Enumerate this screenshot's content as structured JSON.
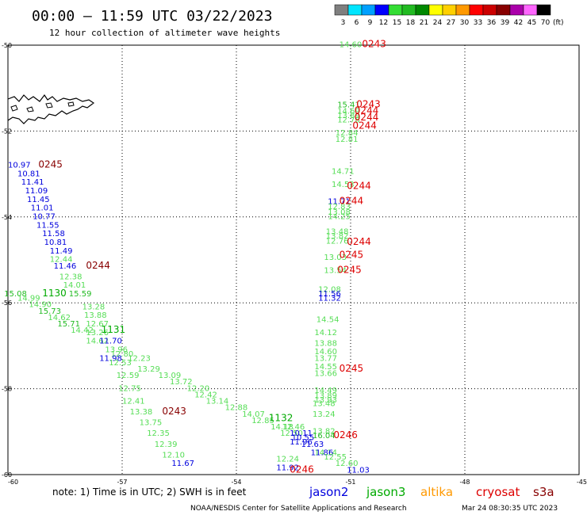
{
  "header": {
    "title": "00:00 — 11:59 UTC 03/22/2023",
    "subtitle": "12 hour collection of altimeter wave heights"
  },
  "legend": {
    "labels": [
      "3",
      "6",
      "9",
      "12",
      "15",
      "18",
      "21",
      "24",
      "27",
      "30",
      "33",
      "36",
      "39",
      "42",
      "45",
      "70",
      "(ft)"
    ],
    "colors": [
      "#7f7f7f",
      "#00e5ff",
      "#00a0ff",
      "#0000ff",
      "#33dd33",
      "#22bb22",
      "#008800",
      "#ffff00",
      "#ffd000",
      "#ff9900",
      "#ff0000",
      "#cc0000",
      "#880000",
      "#aa00aa",
      "#ff66ff",
      "#000000"
    ]
  },
  "footer": {
    "note": "note: 1) Time is in UTC; 2) SWH is in feet",
    "satellites": [
      {
        "name": "jason2",
        "color": "#0000dd"
      },
      {
        "name": "jason3",
        "color": "#00aa00"
      },
      {
        "name": "altika",
        "color": "#ff9900"
      },
      {
        "name": "cryosat",
        "color": "#dd0000"
      },
      {
        "name": "s3a",
        "color": "#880000"
      }
    ],
    "credit": "NOAA/NESDIS Center for Satellite Applications and Research",
    "timestamp": "Mar 24 08:30:35 UTC 2023"
  },
  "chart_data": {
    "type": "scatter",
    "xlim": [
      -60,
      -45
    ],
    "ylim": [
      -60,
      -50
    ],
    "x_ticks": [
      "-60",
      "-57",
      "-54",
      "-51",
      "-48",
      "-45"
    ],
    "y_ticks": [
      "-50",
      "-52",
      "-54",
      "-56",
      "-58",
      "-60"
    ],
    "grid": true,
    "points": [
      {
        "x": -51.3,
        "y": -50.05,
        "v": "14.60",
        "c": "#55dd55"
      },
      {
        "x": -51.35,
        "y": -51.45,
        "v": "15.41",
        "c": "#22bb22"
      },
      {
        "x": -51.35,
        "y": -51.6,
        "v": "14.69",
        "c": "#55dd55"
      },
      {
        "x": -51.35,
        "y": -51.7,
        "v": "13.89",
        "c": "#55dd55"
      },
      {
        "x": -51.35,
        "y": -51.8,
        "v": "12.78",
        "c": "#55dd55"
      },
      {
        "x": -51.4,
        "y": -52.1,
        "v": "12.84",
        "c": "#55dd55"
      },
      {
        "x": -51.4,
        "y": -52.25,
        "v": "12.81",
        "c": "#55dd55"
      },
      {
        "x": -51.5,
        "y": -53.0,
        "v": "14.71",
        "c": "#55dd55"
      },
      {
        "x": -51.5,
        "y": -53.3,
        "v": "14.53",
        "c": "#55dd55"
      },
      {
        "x": -51.6,
        "y": -53.7,
        "v": "11.71",
        "c": "#0000dd"
      },
      {
        "x": -51.6,
        "y": -53.82,
        "v": "12.83",
        "c": "#55dd55"
      },
      {
        "x": -51.6,
        "y": -53.95,
        "v": "13.08",
        "c": "#55dd55"
      },
      {
        "x": -51.6,
        "y": -54.05,
        "v": "14.25",
        "c": "#55dd55"
      },
      {
        "x": -51.65,
        "y": -54.4,
        "v": "13.48",
        "c": "#55dd55"
      },
      {
        "x": -51.65,
        "y": -54.5,
        "v": "13.82",
        "c": "#55dd55"
      },
      {
        "x": -51.65,
        "y": -54.62,
        "v": "12.76",
        "c": "#55dd55"
      },
      {
        "x": -51.7,
        "y": -55.0,
        "v": "13.03",
        "c": "#55dd55"
      },
      {
        "x": -51.7,
        "y": -55.3,
        "v": "13.54",
        "c": "#55dd55"
      },
      {
        "x": -51.85,
        "y": -55.75,
        "v": "12.08",
        "c": "#55dd55"
      },
      {
        "x": -51.85,
        "y": -55.85,
        "v": "11.56",
        "c": "#0000dd"
      },
      {
        "x": -51.85,
        "y": -55.95,
        "v": "11.32",
        "c": "#0000dd"
      },
      {
        "x": -51.9,
        "y": -56.45,
        "v": "14.54",
        "c": "#55dd55"
      },
      {
        "x": -51.95,
        "y": -56.75,
        "v": "14.12",
        "c": "#55dd55"
      },
      {
        "x": -51.95,
        "y": -57.0,
        "v": "13.88",
        "c": "#55dd55"
      },
      {
        "x": -51.95,
        "y": -57.2,
        "v": "14.60",
        "c": "#55dd55"
      },
      {
        "x": -51.95,
        "y": -57.35,
        "v": "13.77",
        "c": "#55dd55"
      },
      {
        "x": -51.95,
        "y": -57.55,
        "v": "14.55",
        "c": "#55dd55"
      },
      {
        "x": -51.95,
        "y": -57.7,
        "v": "13.66",
        "c": "#55dd55"
      },
      {
        "x": -51.95,
        "y": -58.1,
        "v": "14.49",
        "c": "#55dd55"
      },
      {
        "x": -51.95,
        "y": -58.22,
        "v": "13.89",
        "c": "#55dd55"
      },
      {
        "x": -51.95,
        "y": -58.32,
        "v": "13.93",
        "c": "#55dd55"
      },
      {
        "x": -52.0,
        "y": -58.4,
        "v": "13.48",
        "c": "#55dd55"
      },
      {
        "x": -52.0,
        "y": -58.65,
        "v": "13.24",
        "c": "#55dd55"
      },
      {
        "x": -52.0,
        "y": -59.05,
        "v": "13.82",
        "c": "#55dd55"
      },
      {
        "x": -52.0,
        "y": -59.15,
        "v": "16.04",
        "c": "#22bb22"
      },
      {
        "x": -51.95,
        "y": -59.55,
        "v": "14.14",
        "c": "#55dd55"
      },
      {
        "x": -60.0,
        "y": -52.85,
        "v": "10.97",
        "c": "#0000dd"
      },
      {
        "x": -59.75,
        "y": -53.05,
        "v": "10.81",
        "c": "#0000dd"
      },
      {
        "x": -59.65,
        "y": -53.25,
        "v": "11.41",
        "c": "#0000dd"
      },
      {
        "x": -59.55,
        "y": -53.45,
        "v": "11.09",
        "c": "#0000dd"
      },
      {
        "x": -59.5,
        "y": -53.65,
        "v": "11.45",
        "c": "#0000dd"
      },
      {
        "x": -59.4,
        "y": -53.85,
        "v": "11.01",
        "c": "#0000dd"
      },
      {
        "x": -59.35,
        "y": -54.05,
        "v": "10.77",
        "c": "#0000dd"
      },
      {
        "x": -59.25,
        "y": -54.25,
        "v": "11.55",
        "c": "#0000dd"
      },
      {
        "x": -59.1,
        "y": -54.45,
        "v": "11.58",
        "c": "#0000dd"
      },
      {
        "x": -59.05,
        "y": -54.65,
        "v": "10.81",
        "c": "#0000dd"
      },
      {
        "x": -58.9,
        "y": -54.85,
        "v": "11.49",
        "c": "#0000dd"
      },
      {
        "x": -58.9,
        "y": -55.05,
        "v": "12.44",
        "c": "#55dd55"
      },
      {
        "x": -58.8,
        "y": -55.2,
        "v": "11.46",
        "c": "#0000dd"
      },
      {
        "x": -58.65,
        "y": -55.45,
        "v": "12.38",
        "c": "#55dd55"
      },
      {
        "x": -58.55,
        "y": -55.65,
        "v": "14.01",
        "c": "#55dd55"
      },
      {
        "x": -58.4,
        "y": -55.85,
        "v": "15.59",
        "c": "#22bb22"
      },
      {
        "x": -60.1,
        "y": -55.85,
        "v": "15.08",
        "c": "#22bb22"
      },
      {
        "x": -59.75,
        "y": -55.95,
        "v": "14.99",
        "c": "#55dd55"
      },
      {
        "x": -59.45,
        "y": -56.1,
        "v": "14.90",
        "c": "#55dd55"
      },
      {
        "x": -59.2,
        "y": -56.25,
        "v": "15.73",
        "c": "#22bb22"
      },
      {
        "x": -58.95,
        "y": -56.4,
        "v": "14.62",
        "c": "#55dd55"
      },
      {
        "x": -58.7,
        "y": -56.55,
        "v": "15.71",
        "c": "#22bb22"
      },
      {
        "x": -58.35,
        "y": -56.7,
        "v": "14.42",
        "c": "#55dd55"
      },
      {
        "x": -58.05,
        "y": -56.15,
        "v": "13.28",
        "c": "#55dd55"
      },
      {
        "x": -58.0,
        "y": -56.35,
        "v": "13.88",
        "c": "#55dd55"
      },
      {
        "x": -57.95,
        "y": -56.55,
        "v": "12.67",
        "c": "#55dd55"
      },
      {
        "x": -57.95,
        "y": -56.75,
        "v": "13.26",
        "c": "#55dd55"
      },
      {
        "x": -57.95,
        "y": -56.95,
        "v": "14.62",
        "c": "#55dd55"
      },
      {
        "x": -57.6,
        "y": -56.95,
        "v": "11.70",
        "c": "#0000dd"
      },
      {
        "x": -57.45,
        "y": -57.15,
        "v": "13.96",
        "c": "#55dd55"
      },
      {
        "x": -57.3,
        "y": -57.25,
        "v": "12.80",
        "c": "#55dd55"
      },
      {
        "x": -57.6,
        "y": -57.35,
        "v": "11.98",
        "c": "#0000dd"
      },
      {
        "x": -56.85,
        "y": -57.35,
        "v": "12.23",
        "c": "#55dd55"
      },
      {
        "x": -57.35,
        "y": -57.45,
        "v": "12.53",
        "c": "#55dd55"
      },
      {
        "x": -56.6,
        "y": -57.6,
        "v": "13.29",
        "c": "#55dd55"
      },
      {
        "x": -56.05,
        "y": -57.75,
        "v": "13.09",
        "c": "#55dd55"
      },
      {
        "x": -57.15,
        "y": -57.75,
        "v": "12.59",
        "c": "#55dd55"
      },
      {
        "x": -55.75,
        "y": -57.9,
        "v": "13.72",
        "c": "#55dd55"
      },
      {
        "x": -55.3,
        "y": -58.05,
        "v": "12.20",
        "c": "#55dd55"
      },
      {
        "x": -57.1,
        "y": -58.05,
        "v": "12.75",
        "c": "#55dd55"
      },
      {
        "x": -55.1,
        "y": -58.2,
        "v": "12.42",
        "c": "#55dd55"
      },
      {
        "x": -54.8,
        "y": -58.35,
        "v": "13.14",
        "c": "#55dd55"
      },
      {
        "x": -57.0,
        "y": -58.35,
        "v": "12.41",
        "c": "#55dd55"
      },
      {
        "x": -54.3,
        "y": -58.5,
        "v": "12.88",
        "c": "#55dd55"
      },
      {
        "x": -56.8,
        "y": -58.6,
        "v": "13.38",
        "c": "#55dd55"
      },
      {
        "x": -53.85,
        "y": -58.65,
        "v": "14.07",
        "c": "#55dd55"
      },
      {
        "x": -53.6,
        "y": -58.8,
        "v": "12.85",
        "c": "#55dd55"
      },
      {
        "x": -56.55,
        "y": -58.85,
        "v": "13.75",
        "c": "#55dd55"
      },
      {
        "x": -53.1,
        "y": -58.95,
        "v": "14.18",
        "c": "#55dd55"
      },
      {
        "x": -52.8,
        "y": -58.95,
        "v": "12.46",
        "c": "#55dd55"
      },
      {
        "x": -52.85,
        "y": -59.1,
        "v": "12.50",
        "c": "#55dd55"
      },
      {
        "x": -52.6,
        "y": -59.1,
        "v": "10.11",
        "c": "#0000dd"
      },
      {
        "x": -56.35,
        "y": -59.1,
        "v": "12.35",
        "c": "#55dd55"
      },
      {
        "x": -52.55,
        "y": -59.2,
        "v": "10.55",
        "c": "#0000dd"
      },
      {
        "x": -52.6,
        "y": -59.3,
        "v": "11.96",
        "c": "#0000dd"
      },
      {
        "x": -52.3,
        "y": -59.35,
        "v": "11.63",
        "c": "#0000dd"
      },
      {
        "x": -56.15,
        "y": -59.35,
        "v": "12.39",
        "c": "#55dd55"
      },
      {
        "x": -55.95,
        "y": -59.6,
        "v": "12.10",
        "c": "#55dd55"
      },
      {
        "x": -52.05,
        "y": -59.55,
        "v": "11.86",
        "c": "#0000dd"
      },
      {
        "x": -51.7,
        "y": -59.65,
        "v": "12.55",
        "c": "#55dd55"
      },
      {
        "x": -52.95,
        "y": -59.7,
        "v": "12.24",
        "c": "#55dd55"
      },
      {
        "x": -51.4,
        "y": -59.8,
        "v": "12.60",
        "c": "#55dd55"
      },
      {
        "x": -55.7,
        "y": -59.8,
        "v": "11.67",
        "c": "#0000dd"
      },
      {
        "x": -52.95,
        "y": -59.9,
        "v": "11.92",
        "c": "#0000dd"
      },
      {
        "x": -51.1,
        "y": -59.95,
        "v": "11.03",
        "c": "#0000dd"
      }
    ],
    "times": [
      {
        "x": -50.7,
        "y": -50.05,
        "t": "0243",
        "c": "#dd0000"
      },
      {
        "x": -50.85,
        "y": -51.45,
        "t": "0243",
        "c": "#dd0000"
      },
      {
        "x": -50.9,
        "y": -51.6,
        "t": "0244",
        "c": "#dd0000"
      },
      {
        "x": -50.9,
        "y": -51.75,
        "t": "0244",
        "c": "#dd0000"
      },
      {
        "x": -50.95,
        "y": -51.95,
        "t": "0244",
        "c": "#dd0000"
      },
      {
        "x": -51.1,
        "y": -53.35,
        "t": "0244",
        "c": "#dd0000"
      },
      {
        "x": -51.3,
        "y": -53.7,
        "t": "0244",
        "c": "#dd0000"
      },
      {
        "x": -51.1,
        "y": -54.65,
        "t": "0244",
        "c": "#dd0000"
      },
      {
        "x": -51.3,
        "y": -54.95,
        "t": "0245",
        "c": "#dd0000"
      },
      {
        "x": -51.35,
        "y": -55.3,
        "t": "0245",
        "c": "#dd0000"
      },
      {
        "x": -51.3,
        "y": -57.6,
        "t": "0245",
        "c": "#dd0000"
      },
      {
        "x": -51.45,
        "y": -59.15,
        "t": "0246",
        "c": "#dd0000"
      },
      {
        "x": -52.6,
        "y": -59.95,
        "t": "0246",
        "c": "#dd0000"
      },
      {
        "x": -59.2,
        "y": -52.85,
        "t": "0245",
        "c": "#880000"
      },
      {
        "x": -57.95,
        "y": -55.2,
        "t": "0244",
        "c": "#880000"
      },
      {
        "x": -55.95,
        "y": -58.6,
        "t": "0243",
        "c": "#880000"
      },
      {
        "x": -59.1,
        "y": -55.85,
        "t": "1130",
        "c": "#00aa00"
      },
      {
        "x": -57.55,
        "y": -56.7,
        "t": "1131",
        "c": "#00aa00"
      },
      {
        "x": -53.15,
        "y": -58.75,
        "t": "1132",
        "c": "#00aa00"
      }
    ]
  }
}
